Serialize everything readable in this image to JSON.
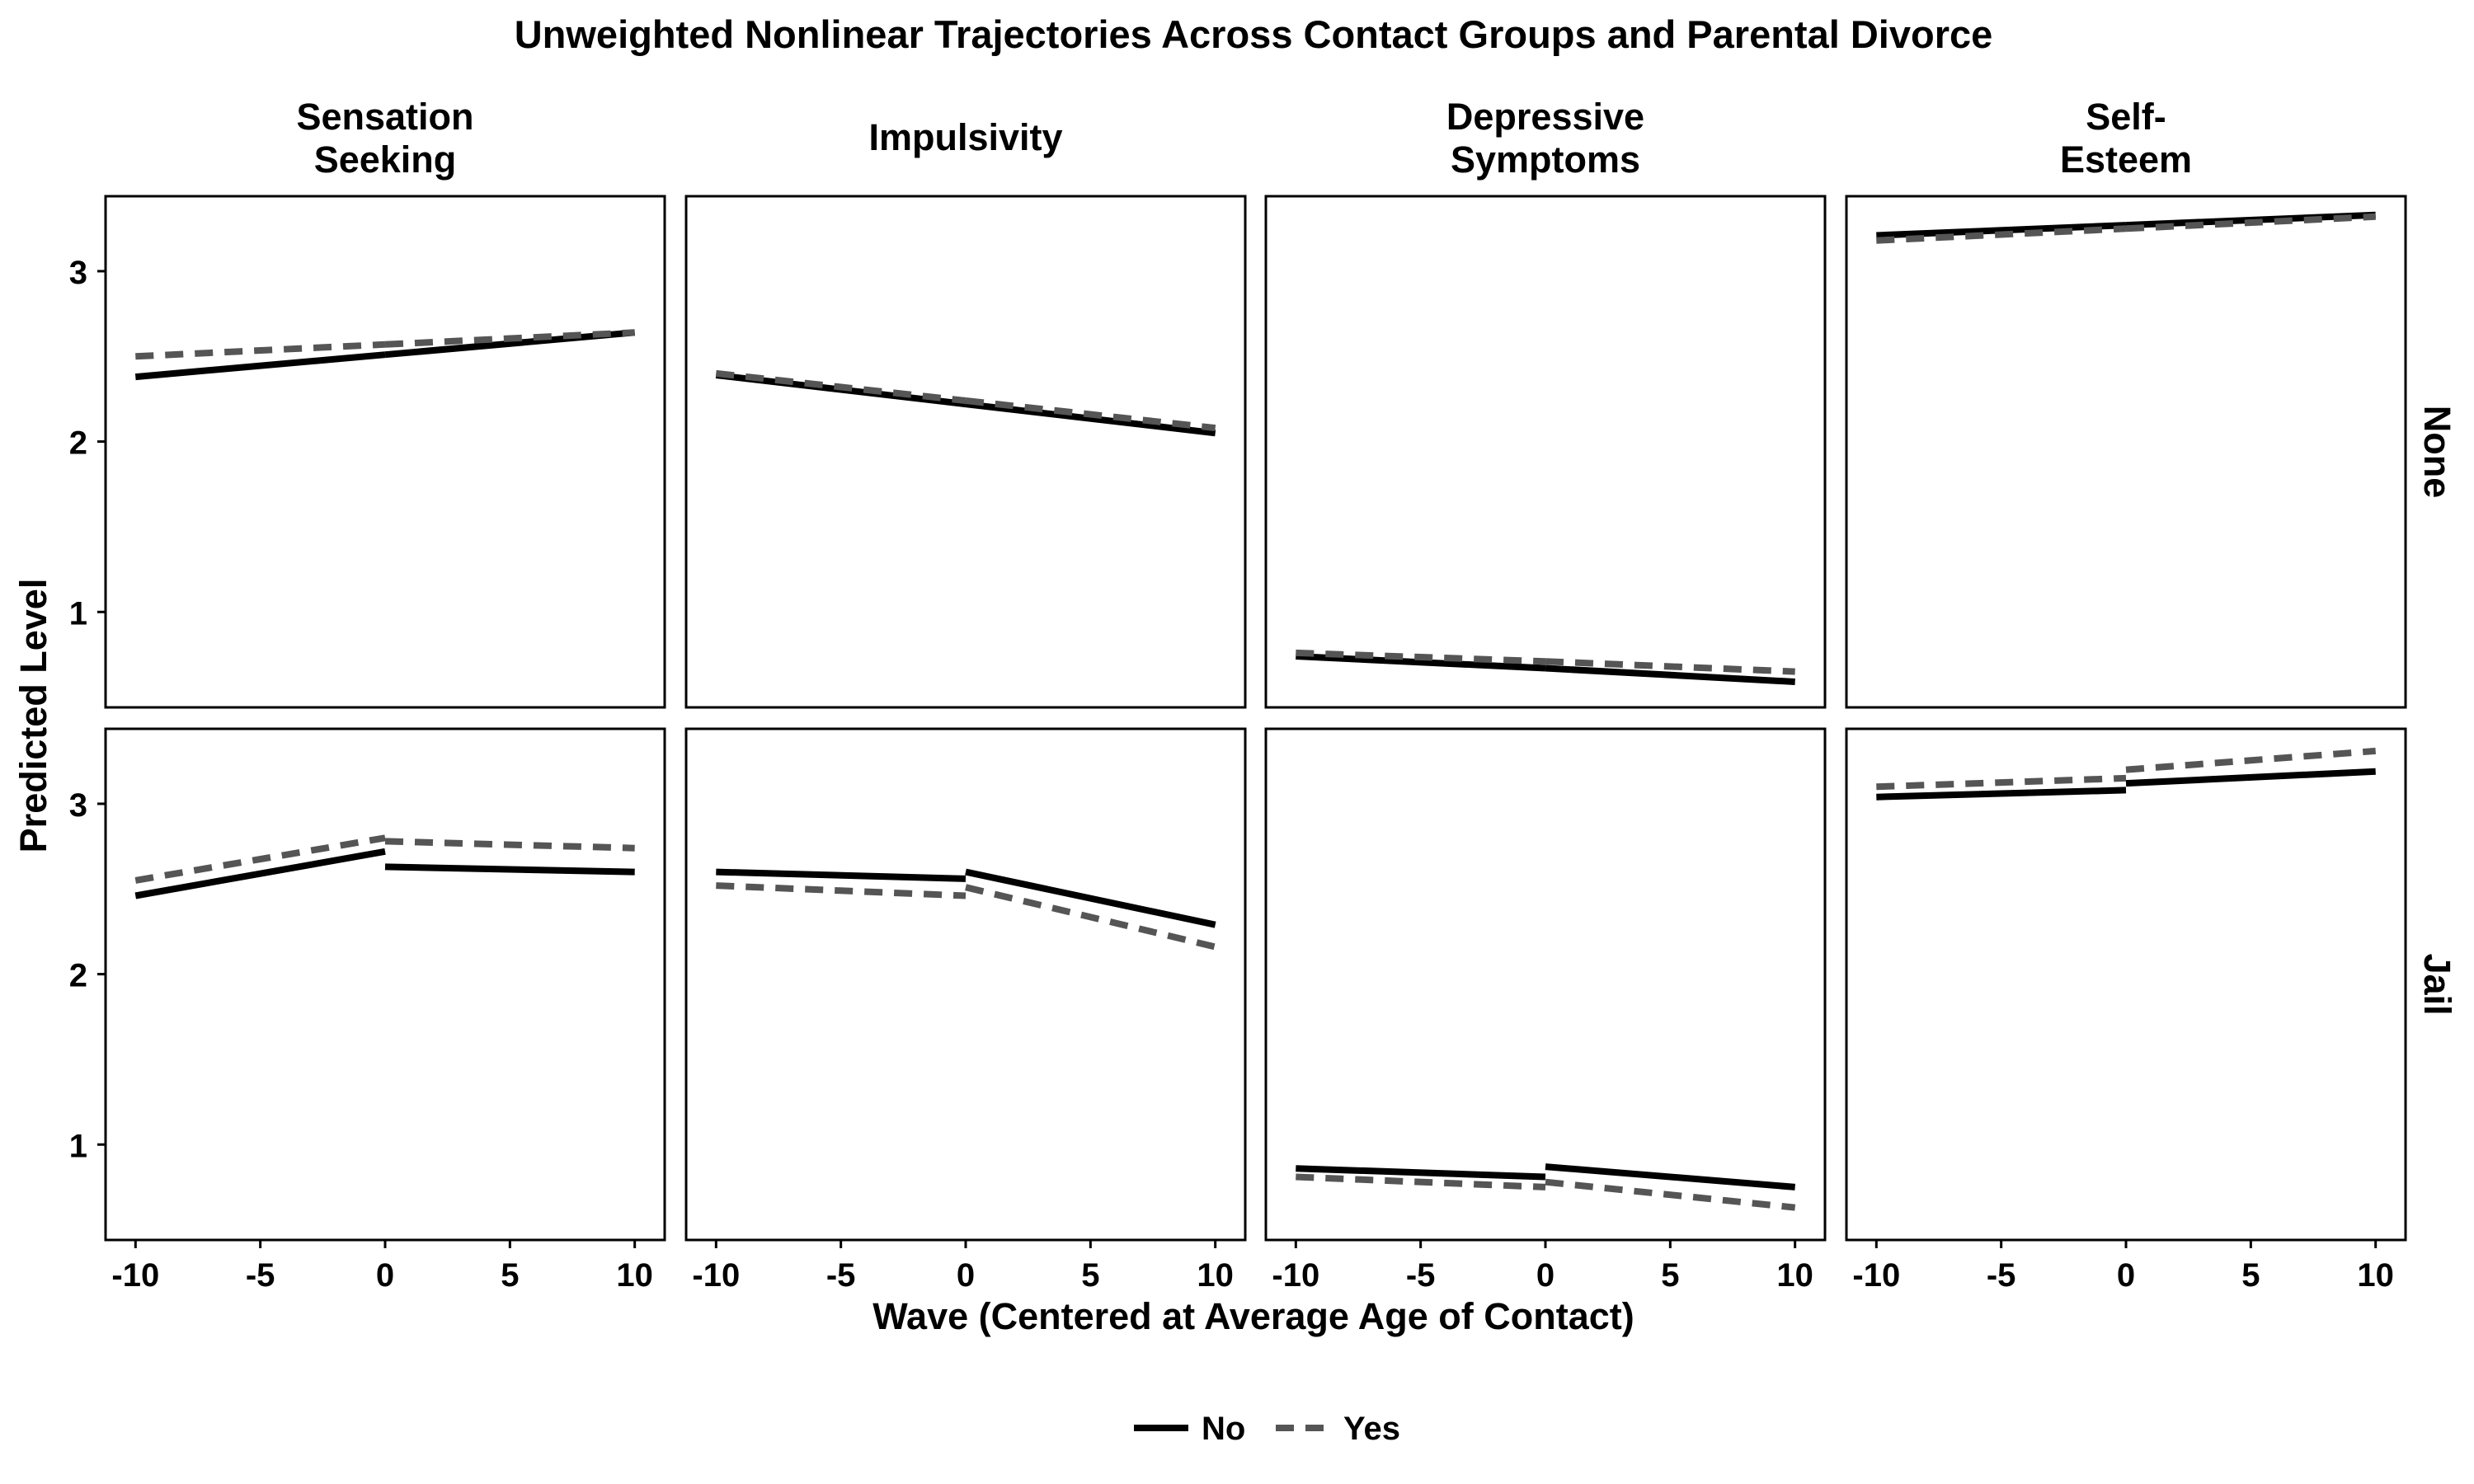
{
  "chart_data": {
    "type": "line",
    "title": "Unweighted Nonlinear Trajectories Across Contact Groups and Parental Divorce",
    "xlabel": "Wave (Centered at Average Age of Contact)",
    "ylabel": "Predicted Level",
    "xlim": [
      -11.2,
      11.2
    ],
    "ylim": [
      0.44,
      3.44
    ],
    "x_ticks": [
      -10,
      -5,
      0,
      5,
      10
    ],
    "x_tick_labels": [
      "-10",
      "-5",
      "0",
      "5",
      "10"
    ],
    "y_ticks": [
      1,
      2,
      3
    ],
    "y_tick_labels": [
      "1",
      "2",
      "3"
    ],
    "columns": [
      {
        "key": "sensation",
        "label_lines": [
          "Sensation",
          "Seeking"
        ]
      },
      {
        "key": "impulsivity",
        "label_lines": [
          "Impulsivity"
        ]
      },
      {
        "key": "depressive",
        "label_lines": [
          "Depressive",
          "Symptoms"
        ]
      },
      {
        "key": "selfesteem",
        "label_lines": [
          "Self-",
          "Esteem"
        ]
      }
    ],
    "rows": [
      {
        "key": "none",
        "label": "None"
      },
      {
        "key": "jail",
        "label": "Jail"
      }
    ],
    "legend": {
      "position": "bottom",
      "items": [
        {
          "name": "No",
          "style": "solid",
          "color": "#000000"
        },
        {
          "name": "Yes",
          "style": "dashed",
          "color": "#555555"
        }
      ]
    },
    "grid": false,
    "panels": [
      {
        "row": "none",
        "col": "sensation",
        "series": [
          {
            "name": "No",
            "segments": [
              [
                [
                  -10,
                  2.38
                ],
                [
                  0,
                  2.51
                ]
              ],
              [
                [
                  0,
                  2.51
                ],
                [
                  10,
                  2.64
                ]
              ]
            ]
          },
          {
            "name": "Yes",
            "segments": [
              [
                [
                  -10,
                  2.5
                ],
                [
                  0,
                  2.57
                ]
              ],
              [
                [
                  0,
                  2.57
                ],
                [
                  10,
                  2.64
                ]
              ]
            ]
          }
        ]
      },
      {
        "row": "none",
        "col": "impulsivity",
        "series": [
          {
            "name": "No",
            "segments": [
              [
                [
                  -10,
                  2.39
                ],
                [
                  0,
                  2.22
                ]
              ],
              [
                [
                  0,
                  2.22
                ],
                [
                  10,
                  2.05
                ]
              ]
            ]
          },
          {
            "name": "Yes",
            "segments": [
              [
                [
                  -10,
                  2.4
                ],
                [
                  0,
                  2.24
                ]
              ],
              [
                [
                  0,
                  2.24
                ],
                [
                  10,
                  2.08
                ]
              ]
            ]
          }
        ]
      },
      {
        "row": "none",
        "col": "depressive",
        "series": [
          {
            "name": "No",
            "segments": [
              [
                [
                  -10,
                  0.74
                ],
                [
                  0,
                  0.67
                ]
              ],
              [
                [
                  0,
                  0.67
                ],
                [
                  10,
                  0.59
                ]
              ]
            ]
          },
          {
            "name": "Yes",
            "segments": [
              [
                [
                  -10,
                  0.76
                ],
                [
                  0,
                  0.71
                ]
              ],
              [
                [
                  0,
                  0.71
                ],
                [
                  10,
                  0.65
                ]
              ]
            ]
          }
        ]
      },
      {
        "row": "none",
        "col": "selfesteem",
        "series": [
          {
            "name": "No",
            "segments": [
              [
                [
                  -10,
                  3.21
                ],
                [
                  0,
                  3.27
                ]
              ],
              [
                [
                  0,
                  3.27
                ],
                [
                  10,
                  3.33
                ]
              ]
            ]
          },
          {
            "name": "Yes",
            "segments": [
              [
                [
                  -10,
                  3.18
                ],
                [
                  0,
                  3.25
                ]
              ],
              [
                [
                  0,
                  3.25
                ],
                [
                  10,
                  3.32
                ]
              ]
            ]
          }
        ]
      },
      {
        "row": "jail",
        "col": "sensation",
        "series": [
          {
            "name": "No",
            "segments": [
              [
                [
                  -10,
                  2.46
                ],
                [
                  0,
                  2.72
                ]
              ],
              [
                [
                  0,
                  2.63
                ],
                [
                  10,
                  2.6
                ]
              ]
            ]
          },
          {
            "name": "Yes",
            "segments": [
              [
                [
                  -10,
                  2.55
                ],
                [
                  0,
                  2.8
                ]
              ],
              [
                [
                  0,
                  2.78
                ],
                [
                  10,
                  2.74
                ]
              ]
            ]
          }
        ]
      },
      {
        "row": "jail",
        "col": "impulsivity",
        "series": [
          {
            "name": "No",
            "segments": [
              [
                [
                  -10,
                  2.6
                ],
                [
                  0,
                  2.56
                ]
              ],
              [
                [
                  0,
                  2.6
                ],
                [
                  10,
                  2.29
                ]
              ]
            ]
          },
          {
            "name": "Yes",
            "segments": [
              [
                [
                  -10,
                  2.52
                ],
                [
                  0,
                  2.46
                ]
              ],
              [
                [
                  0,
                  2.51
                ],
                [
                  10,
                  2.16
                ]
              ]
            ]
          }
        ]
      },
      {
        "row": "jail",
        "col": "depressive",
        "series": [
          {
            "name": "No",
            "segments": [
              [
                [
                  -10,
                  0.86
                ],
                [
                  0,
                  0.81
                ]
              ],
              [
                [
                  0,
                  0.87
                ],
                [
                  10,
                  0.75
                ]
              ]
            ]
          },
          {
            "name": "Yes",
            "segments": [
              [
                [
                  -10,
                  0.81
                ],
                [
                  0,
                  0.75
                ]
              ],
              [
                [
                  0,
                  0.78
                ],
                [
                  10,
                  0.63
                ]
              ]
            ]
          }
        ]
      },
      {
        "row": "jail",
        "col": "selfesteem",
        "series": [
          {
            "name": "No",
            "segments": [
              [
                [
                  -10,
                  3.04
                ],
                [
                  0,
                  3.08
                ]
              ],
              [
                [
                  0,
                  3.12
                ],
                [
                  10,
                  3.19
                ]
              ]
            ]
          },
          {
            "name": "Yes",
            "segments": [
              [
                [
                  -10,
                  3.1
                ],
                [
                  0,
                  3.15
                ]
              ],
              [
                [
                  0,
                  3.2
                ],
                [
                  10,
                  3.31
                ]
              ]
            ]
          }
        ]
      }
    ]
  }
}
